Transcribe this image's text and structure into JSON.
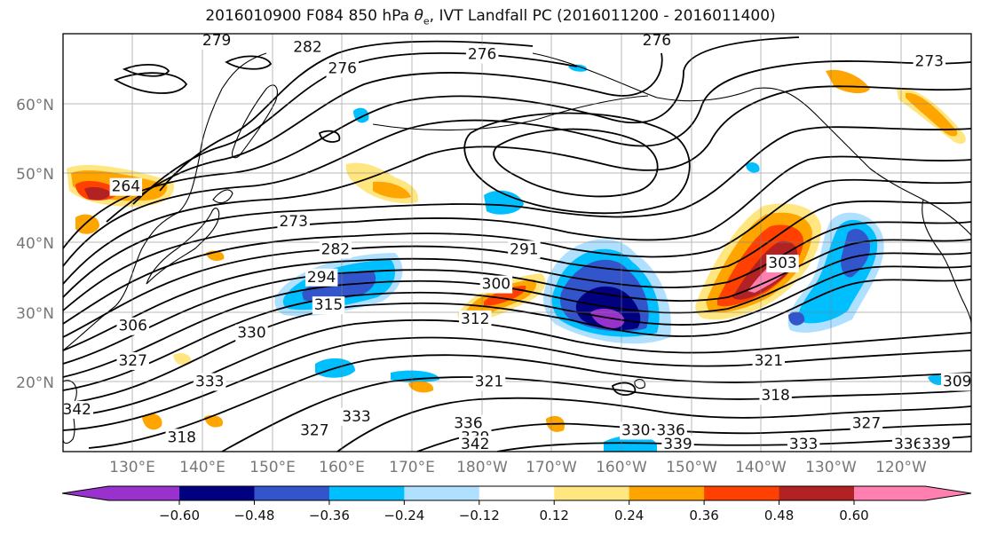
{
  "title": {
    "prefix": "2016010900 F084 850 hPa ",
    "var_symbol": "θ",
    "var_sub": "e",
    "suffix": ", IVT Landfall PC (2016011200 - 2016011400)"
  },
  "map": {
    "projection": "PlateCarree",
    "extent_lon": [
      120,
      250
    ],
    "extent_lat": [
      10,
      70
    ],
    "grid_lines": true,
    "coastlines": true,
    "lat_labels": [
      "20°N",
      "30°N",
      "40°N",
      "50°N",
      "60°N"
    ],
    "lat_values": [
      20,
      30,
      40,
      50,
      60
    ],
    "lon_labels": [
      "130°E",
      "140°E",
      "150°E",
      "160°E",
      "170°E",
      "180°W",
      "170°W",
      "160°W",
      "150°W",
      "140°W",
      "130°W",
      "120°W"
    ],
    "lon_values": [
      130,
      140,
      150,
      160,
      170,
      180,
      190,
      200,
      210,
      220,
      230,
      240
    ]
  },
  "contour_labels": [
    {
      "text": "279",
      "lon": 142,
      "lat": 69
    },
    {
      "text": "282",
      "lon": 155,
      "lat": 68
    },
    {
      "text": "276",
      "lon": 160,
      "lat": 65
    },
    {
      "text": "276",
      "lon": 180,
      "lat": 67
    },
    {
      "text": "276",
      "lon": 205,
      "lat": 69
    },
    {
      "text": "273",
      "lon": 244,
      "lat": 66
    },
    {
      "text": "264",
      "lon": 129,
      "lat": 48
    },
    {
      "text": "273",
      "lon": 153,
      "lat": 43
    },
    {
      "text": "282",
      "lon": 159,
      "lat": 39
    },
    {
      "text": "291",
      "lon": 186,
      "lat": 39
    },
    {
      "text": "294",
      "lon": 157,
      "lat": 35
    },
    {
      "text": "300",
      "lon": 182,
      "lat": 34
    },
    {
      "text": "315",
      "lon": 158,
      "lat": 31
    },
    {
      "text": "312",
      "lon": 179,
      "lat": 29
    },
    {
      "text": "306",
      "lon": 130,
      "lat": 28
    },
    {
      "text": "330",
      "lon": 147,
      "lat": 27
    },
    {
      "text": "327",
      "lon": 130,
      "lat": 23
    },
    {
      "text": "333",
      "lon": 141,
      "lat": 20
    },
    {
      "text": "321",
      "lon": 181,
      "lat": 20
    },
    {
      "text": "321",
      "lon": 221,
      "lat": 23
    },
    {
      "text": "318",
      "lon": 222,
      "lat": 18
    },
    {
      "text": "342",
      "lon": 122,
      "lat": 16
    },
    {
      "text": "333",
      "lon": 162,
      "lat": 15
    },
    {
      "text": "336",
      "lon": 178,
      "lat": 14
    },
    {
      "text": "339",
      "lon": 179,
      "lat": 12
    },
    {
      "text": "342",
      "lon": 179,
      "lat": 11
    },
    {
      "text": "327",
      "lon": 156,
      "lat": 13
    },
    {
      "text": "330",
      "lon": 202,
      "lat": 13
    },
    {
      "text": "336",
      "lon": 207,
      "lat": 13
    },
    {
      "text": "339",
      "lon": 208,
      "lat": 11
    },
    {
      "text": "333",
      "lon": 226,
      "lat": 11
    },
    {
      "text": "327",
      "lon": 235,
      "lat": 14
    },
    {
      "text": "336",
      "lon": 241,
      "lat": 11
    },
    {
      "text": "339",
      "lon": 245,
      "lat": 11
    },
    {
      "text": "318",
      "lon": 137,
      "lat": 12
    },
    {
      "text": "309",
      "lon": 248,
      "lat": 20
    },
    {
      "text": "303",
      "lon": 223,
      "lat": 37
    }
  ],
  "colorbar": {
    "ticks": [
      "−0.60",
      "−0.48",
      "−0.36",
      "−0.24",
      "−0.12",
      "0.12",
      "0.24",
      "0.36",
      "0.48",
      "0.60"
    ],
    "under_color": "#9932cc",
    "bin_colors": [
      "#000080",
      "#3355cc",
      "#00bfff",
      "#b0e0ff",
      "#ffffff",
      "#ffe680",
      "#ffa500",
      "#ff4000",
      "#b22222"
    ],
    "over_color": "#ff80b0"
  },
  "shading_colors": {
    "neg_strong": "#9932cc",
    "neg_navy": "#000080",
    "neg_blue": "#3355cc",
    "neg_cyan": "#00bfff",
    "neg_light": "#b0e0ff",
    "pos_yellow": "#ffe680",
    "pos_orange": "#ffa500",
    "pos_red": "#ff4000",
    "pos_dark": "#b22222",
    "pos_pink": "#ff80b0"
  }
}
